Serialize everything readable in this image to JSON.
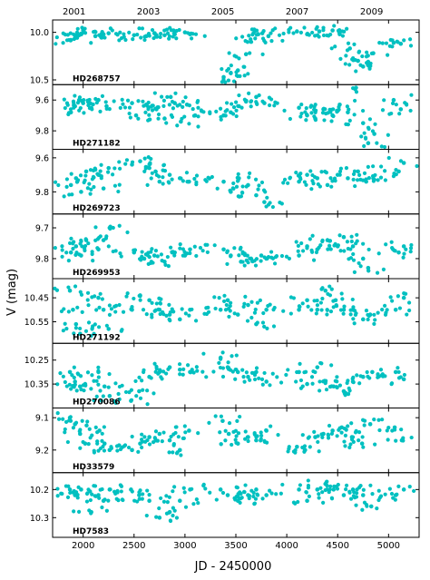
{
  "chart_data": {
    "type": "scatter",
    "ylabel": "V (mag)",
    "xlabel": "JD - 2450000",
    "x_ticks": [
      "2000",
      "2500",
      "3000",
      "3500",
      "4000",
      "4500",
      "5000"
    ],
    "top_ticks": [
      "2001",
      "2003",
      "2005",
      "2007",
      "2009"
    ],
    "xlim": [
      1700,
      5300
    ],
    "marker_color": "#00c0c0",
    "inverted_y": true,
    "panels": [
      {
        "star": "HD268757",
        "ylim": [
          10.55,
          9.87
        ],
        "yticks": [
          "10.0",
          "10.5"
        ],
        "points": [
          [
            1880,
            10.08
          ],
          [
            1920,
            10.06
          ],
          [
            1960,
            10.03
          ],
          [
            2000,
            9.98
          ],
          [
            2120,
            10.04
          ],
          [
            2200,
            10.02
          ],
          [
            2250,
            10.01
          ],
          [
            2500,
            10.03
          ],
          [
            2620,
            10.04
          ],
          [
            2700,
            10.01
          ],
          [
            2800,
            10.03
          ],
          [
            2900,
            10.02
          ],
          [
            3000,
            10.0
          ],
          [
            3050,
            10.02
          ],
          [
            3380,
            10.47
          ],
          [
            3450,
            10.43
          ],
          [
            3520,
            10.4
          ],
          [
            3600,
            10.23
          ],
          [
            3650,
            10.1
          ],
          [
            3720,
            10.02
          ],
          [
            3760,
            10.01
          ],
          [
            3820,
            10.04
          ],
          [
            4100,
            9.99
          ],
          [
            4200,
            10.02
          ],
          [
            4320,
            9.99
          ],
          [
            4450,
            9.98
          ],
          [
            4520,
            10.02
          ],
          [
            4620,
            10.17
          ],
          [
            4700,
            10.3
          ],
          [
            4750,
            10.36
          ],
          [
            4800,
            10.31
          ],
          [
            4850,
            10.22
          ],
          [
            5050,
            10.11
          ],
          [
            5120,
            10.12
          ]
        ]
      },
      {
        "star": "HD271182",
        "ylim": [
          9.92,
          9.5
        ],
        "yticks": [
          "9.6",
          "9.8"
        ],
        "points": [
          [
            1880,
            9.68
          ],
          [
            1920,
            9.64
          ],
          [
            1960,
            9.6
          ],
          [
            2000,
            9.62
          ],
          [
            2080,
            9.65
          ],
          [
            2150,
            9.6
          ],
          [
            2230,
            9.64
          ],
          [
            2480,
            9.62
          ],
          [
            2520,
            9.7
          ],
          [
            2620,
            9.63
          ],
          [
            2720,
            9.66
          ],
          [
            2800,
            9.72
          ],
          [
            2860,
            9.58
          ],
          [
            2900,
            9.62
          ],
          [
            2960,
            9.74
          ],
          [
            3020,
            9.63
          ],
          [
            3100,
            9.7
          ],
          [
            3380,
            9.7
          ],
          [
            3450,
            9.68
          ],
          [
            3530,
            9.64
          ],
          [
            3600,
            9.61
          ],
          [
            3700,
            9.58
          ],
          [
            3780,
            9.62
          ],
          [
            4120,
            9.65
          ],
          [
            4200,
            9.7
          ],
          [
            4280,
            9.72
          ],
          [
            4360,
            9.66
          ],
          [
            4450,
            9.7
          ],
          [
            4520,
            9.63
          ],
          [
            4600,
            9.68
          ],
          [
            4680,
            9.52
          ],
          [
            4750,
            9.75
          ],
          [
            4800,
            9.88
          ],
          [
            4860,
            9.82
          ],
          [
            5050,
            9.6
          ],
          [
            5120,
            9.66
          ]
        ]
      },
      {
        "star": "HD269723",
        "ylim": [
          9.93,
          9.55
        ],
        "yticks": [
          "9.6",
          "9.8"
        ],
        "points": [
          [
            1880,
            9.76
          ],
          [
            1930,
            9.72
          ],
          [
            1980,
            9.8
          ],
          [
            2030,
            9.68
          ],
          [
            2150,
            9.7
          ],
          [
            2200,
            9.78
          ],
          [
            2250,
            9.66
          ],
          [
            2480,
            9.64
          ],
          [
            2560,
            9.62
          ],
          [
            2650,
            9.66
          ],
          [
            2750,
            9.74
          ],
          [
            2850,
            9.7
          ],
          [
            2950,
            9.72
          ],
          [
            3040,
            9.74
          ],
          [
            3380,
            9.74
          ],
          [
            3450,
            9.8
          ],
          [
            3530,
            9.72
          ],
          [
            3620,
            9.76
          ],
          [
            3700,
            9.82
          ],
          [
            3780,
            9.86
          ],
          [
            4120,
            9.74
          ],
          [
            4200,
            9.7
          ],
          [
            4300,
            9.72
          ],
          [
            4400,
            9.76
          ],
          [
            4500,
            9.7
          ],
          [
            4600,
            9.72
          ],
          [
            4700,
            9.68
          ],
          [
            4780,
            9.74
          ],
          [
            4850,
            9.72
          ],
          [
            5100,
            9.68
          ],
          [
            5150,
            9.63
          ]
        ]
      },
      {
        "star": "HD269953",
        "ylim": [
          9.865,
          9.655
        ],
        "yticks": [
          "9.7",
          "9.8"
        ],
        "points": [
          [
            1880,
            9.78
          ],
          [
            1930,
            9.76
          ],
          [
            1980,
            9.79
          ],
          [
            2030,
            9.74
          ],
          [
            2150,
            9.77
          ],
          [
            2200,
            9.74
          ],
          [
            2260,
            9.7
          ],
          [
            2500,
            9.78
          ],
          [
            2600,
            9.8
          ],
          [
            2700,
            9.79
          ],
          [
            2800,
            9.81
          ],
          [
            2900,
            9.78
          ],
          [
            3000,
            9.79
          ],
          [
            3050,
            9.77
          ],
          [
            3380,
            9.77
          ],
          [
            3450,
            9.79
          ],
          [
            3550,
            9.81
          ],
          [
            3650,
            9.8
          ],
          [
            3750,
            9.79
          ],
          [
            3800,
            9.8
          ],
          [
            4120,
            9.79
          ],
          [
            4200,
            9.76
          ],
          [
            4300,
            9.77
          ],
          [
            4400,
            9.74
          ],
          [
            4500,
            9.76
          ],
          [
            4560,
            9.73
          ],
          [
            4650,
            9.76
          ],
          [
            4750,
            9.8
          ],
          [
            4800,
            9.83
          ],
          [
            5100,
            9.78
          ],
          [
            5150,
            9.76
          ]
        ]
      },
      {
        "star": "HD271192",
        "ylim": [
          10.64,
          10.37
        ],
        "yticks": [
          "10.45",
          "10.55"
        ],
        "points": [
          [
            1870,
            10.42
          ],
          [
            1900,
            10.5
          ],
          [
            1930,
            10.56
          ],
          [
            1970,
            10.6
          ],
          [
            2150,
            10.45
          ],
          [
            2200,
            10.5
          ],
          [
            2250,
            10.58
          ],
          [
            2480,
            10.5
          ],
          [
            2560,
            10.44
          ],
          [
            2650,
            10.46
          ],
          [
            2750,
            10.5
          ],
          [
            2850,
            10.52
          ],
          [
            2950,
            10.54
          ],
          [
            3050,
            10.5
          ],
          [
            3350,
            10.5
          ],
          [
            3420,
            10.46
          ],
          [
            3520,
            10.52
          ],
          [
            3620,
            10.48
          ],
          [
            3700,
            10.56
          ],
          [
            3800,
            10.5
          ],
          [
            4120,
            10.5
          ],
          [
            4200,
            10.46
          ],
          [
            4300,
            10.5
          ],
          [
            4380,
            10.42
          ],
          [
            4480,
            10.46
          ],
          [
            4560,
            10.5
          ],
          [
            4650,
            10.5
          ],
          [
            4750,
            10.54
          ],
          [
            4820,
            10.52
          ],
          [
            5070,
            10.5
          ],
          [
            5150,
            10.45
          ]
        ]
      },
      {
        "star": "HD270086",
        "ylim": [
          10.45,
          10.18
        ],
        "yticks": [
          "10.25",
          "10.35"
        ],
        "points": [
          [
            1870,
            10.3
          ],
          [
            1920,
            10.34
          ],
          [
            1970,
            10.36
          ],
          [
            2020,
            10.35
          ],
          [
            2150,
            10.3
          ],
          [
            2210,
            10.36
          ],
          [
            2260,
            10.4
          ],
          [
            2470,
            10.42
          ],
          [
            2550,
            10.38
          ],
          [
            2650,
            10.32
          ],
          [
            2750,
            10.3
          ],
          [
            2850,
            10.28
          ],
          [
            2950,
            10.29
          ],
          [
            3050,
            10.3
          ],
          [
            3350,
            10.24
          ],
          [
            3420,
            10.28
          ],
          [
            3520,
            10.3
          ],
          [
            3620,
            10.32
          ],
          [
            3700,
            10.3
          ],
          [
            3800,
            10.34
          ],
          [
            4120,
            10.3
          ],
          [
            4200,
            10.35
          ],
          [
            4300,
            10.28
          ],
          [
            4380,
            10.34
          ],
          [
            4460,
            10.36
          ],
          [
            4560,
            10.38
          ],
          [
            4650,
            10.34
          ],
          [
            4750,
            10.32
          ],
          [
            4840,
            10.3
          ],
          [
            5070,
            10.3
          ],
          [
            5150,
            10.33
          ]
        ]
      },
      {
        "star": "HD33579",
        "ylim": [
          9.27,
          9.07
        ],
        "yticks": [
          "9.1",
          "9.2"
        ],
        "points": [
          [
            1870,
            9.1
          ],
          [
            1920,
            9.12
          ],
          [
            1970,
            9.15
          ],
          [
            2020,
            9.18
          ],
          [
            2160,
            9.14
          ],
          [
            2210,
            9.18
          ],
          [
            2260,
            9.2
          ],
          [
            2480,
            9.2
          ],
          [
            2560,
            9.18
          ],
          [
            2650,
            9.16
          ],
          [
            2750,
            9.15
          ],
          [
            2850,
            9.17
          ],
          [
            2950,
            9.2
          ],
          [
            3040,
            9.14
          ],
          [
            3370,
            9.11
          ],
          [
            3430,
            9.15
          ],
          [
            3520,
            9.18
          ],
          [
            3620,
            9.16
          ],
          [
            3700,
            9.17
          ],
          [
            3800,
            9.14
          ],
          [
            4100,
            9.19
          ],
          [
            4180,
            9.2
          ],
          [
            4280,
            9.16
          ],
          [
            4360,
            9.15
          ],
          [
            4450,
            9.14
          ],
          [
            4540,
            9.13
          ],
          [
            4640,
            9.16
          ],
          [
            4740,
            9.18
          ],
          [
            4820,
            9.12
          ],
          [
            5060,
            9.13
          ],
          [
            5130,
            9.17
          ]
        ]
      },
      {
        "star": "HD7583",
        "ylim": [
          10.37,
          10.14
        ],
        "yticks": [
          "10.2",
          "10.3"
        ],
        "points": [
          [
            1870,
            10.2
          ],
          [
            1920,
            10.22
          ],
          [
            1980,
            10.2
          ],
          [
            2080,
            10.28
          ],
          [
            2150,
            10.22
          ],
          [
            2200,
            10.24
          ],
          [
            2260,
            10.2
          ],
          [
            2470,
            10.2
          ],
          [
            2550,
            10.22
          ],
          [
            2650,
            10.24
          ],
          [
            2750,
            10.3
          ],
          [
            2850,
            10.28
          ],
          [
            2950,
            10.24
          ],
          [
            3050,
            10.2
          ],
          [
            3350,
            10.2
          ],
          [
            3420,
            10.22
          ],
          [
            3520,
            10.24
          ],
          [
            3620,
            10.22
          ],
          [
            3700,
            10.2
          ],
          [
            3800,
            10.22
          ],
          [
            4120,
            10.2
          ],
          [
            4200,
            10.24
          ],
          [
            4300,
            10.2
          ],
          [
            4380,
            10.18
          ],
          [
            4460,
            10.2
          ],
          [
            4560,
            10.22
          ],
          [
            4650,
            10.2
          ],
          [
            4750,
            10.22
          ],
          [
            4830,
            10.26
          ],
          [
            5070,
            10.22
          ],
          [
            5150,
            10.2
          ]
        ]
      }
    ]
  }
}
